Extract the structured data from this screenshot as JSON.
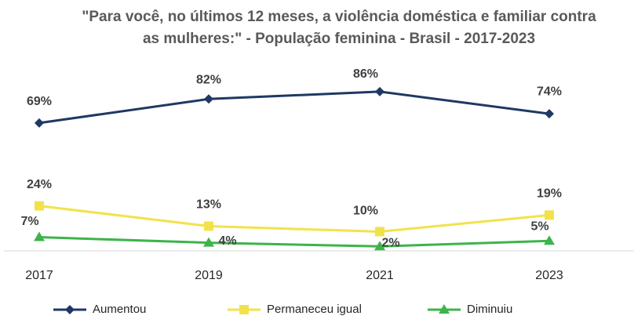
{
  "chart_data": {
    "type": "line",
    "title": [
      "\"Para você, no últimos 12 meses, a violência doméstica e familiar contra",
      "as mulheres:\" - População feminina - Brasil - 2017-2023"
    ],
    "categories": [
      "2017",
      "2019",
      "2021",
      "2023"
    ],
    "series": [
      {
        "name": "Aumentou",
        "color": "#1f3864",
        "marker": "diamond",
        "values": [
          69,
          82,
          86,
          74
        ],
        "value_labels": [
          "69%",
          "82%",
          "86%",
          "74%"
        ]
      },
      {
        "name": "Permaneceu igual",
        "color": "#f2e24a",
        "marker": "square",
        "values": [
          24,
          13,
          10,
          19
        ],
        "value_labels": [
          "24%",
          "13%",
          "10%",
          "19%"
        ]
      },
      {
        "name": "Diminuiu",
        "color": "#3cb44b",
        "marker": "triangle",
        "values": [
          7,
          4,
          2,
          5
        ],
        "value_labels": [
          "7%",
          "4%",
          "2%",
          "5%"
        ]
      }
    ],
    "ylim": [
      0,
      100
    ],
    "legend": "bottom"
  }
}
